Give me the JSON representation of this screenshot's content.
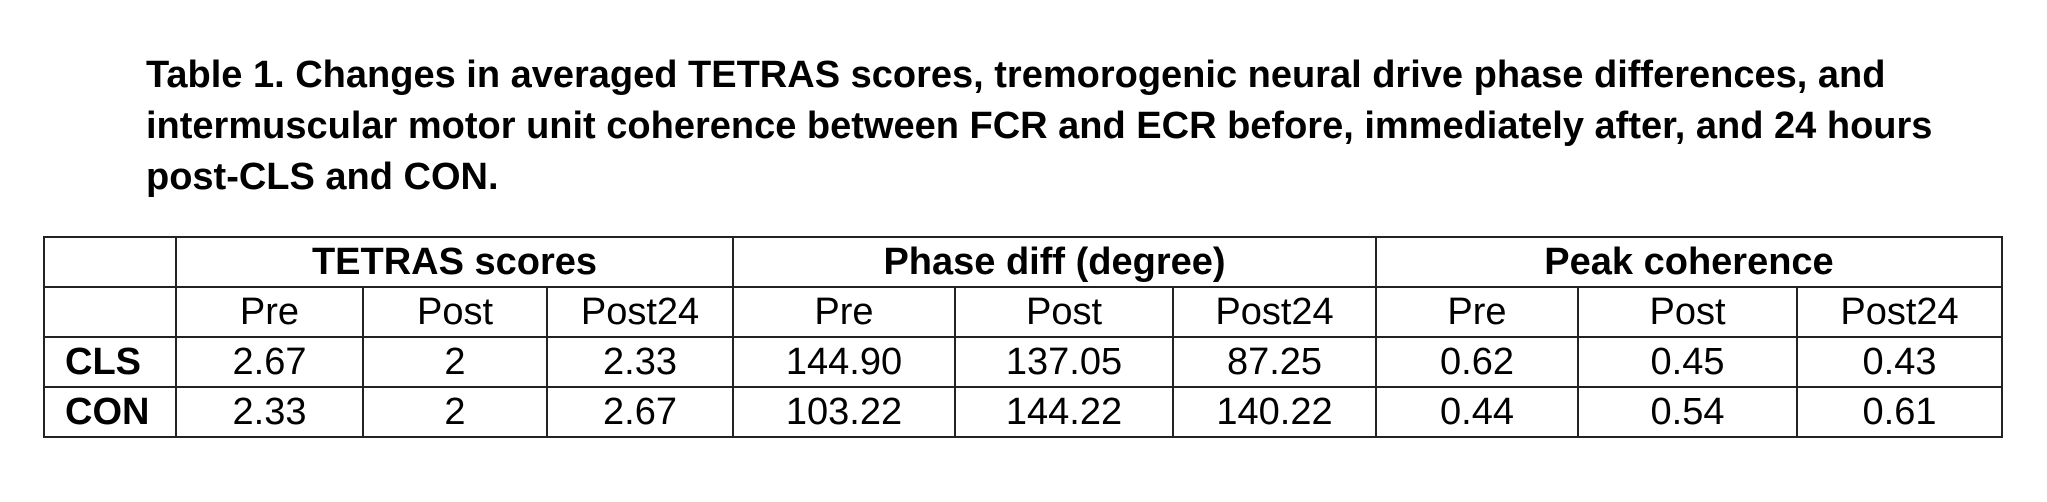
{
  "caption": "Table 1. Changes in averaged TETRAS scores, tremorogenic neural drive phase differences, and intermuscular motor unit coherence between FCR and ECR before, immediately after, and 24 hours post-CLS and CON.",
  "groups": [
    "TETRAS scores",
    "Phase diff (degree)",
    "Peak coherence"
  ],
  "subheaders": [
    "Pre",
    "Post",
    "Post24",
    "Pre",
    "Post",
    "Post24",
    "Pre",
    "Post",
    "Post24"
  ],
  "rows": [
    {
      "label": "CLS",
      "values": [
        "2.67",
        "2",
        "2.33",
        "144.90",
        "137.05",
        "87.25",
        "0.62",
        "0.45",
        "0.43"
      ]
    },
    {
      "label": "CON",
      "values": [
        "2.33",
        "2",
        "2.67",
        "103.22",
        "144.22",
        "140.22",
        "0.44",
        "0.54",
        "0.61"
      ]
    }
  ]
}
